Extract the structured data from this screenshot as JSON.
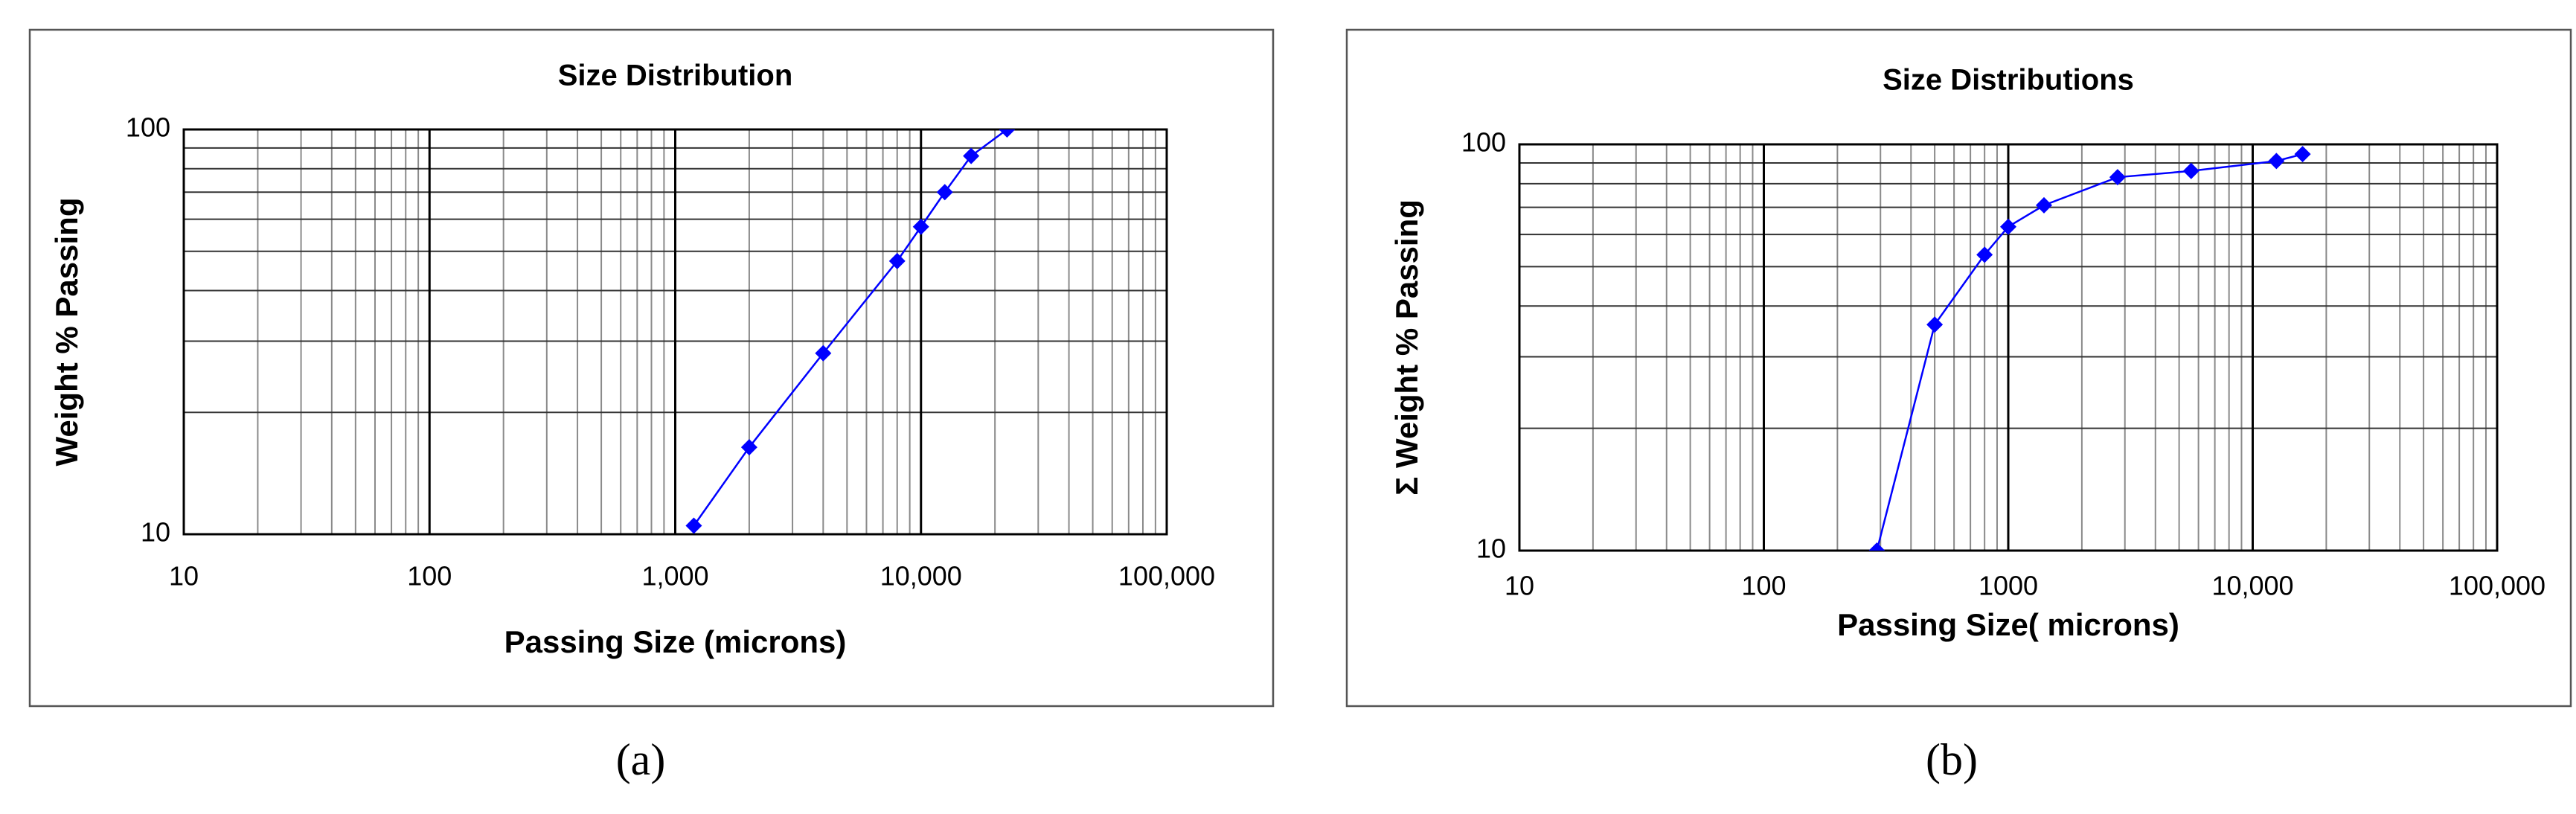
{
  "chart_data": [
    {
      "type": "line",
      "title": "Size Distribution",
      "x_label": "Passing Size (microns)",
      "y_label": "Weight % Passing",
      "caption": "(a)",
      "xscale": "log",
      "yscale": "log",
      "grid": true,
      "minor_grid": true,
      "color": "#0000ff",
      "x": [
        1190,
        2000,
        4000,
        8000,
        10000,
        12500,
        16000,
        22400
      ],
      "values": [
        10.5,
        16.4,
        28,
        47.3,
        57.5,
        70,
        86,
        100
      ],
      "xlim": [
        10,
        100000
      ],
      "xticks": [
        10,
        100,
        {
          "value": 1000,
          "label": "1,000"
        },
        {
          "value": 10000,
          "label": "10,000"
        },
        {
          "value": 100000,
          "label": "100,000"
        }
      ],
      "ylim": [
        10,
        100
      ],
      "yticks": [
        10,
        100
      ]
    },
    {
      "type": "line",
      "title": "Size Distributions",
      "x_label": "Passing Size( microns)",
      "y_label": "Σ Weight % Passing",
      "caption": "(b)",
      "xscale": "log",
      "yscale": "log",
      "grid": true,
      "minor_grid": true,
      "color": "#0000ff",
      "x": [
        290,
        500,
        800,
        1000,
        1400,
        2800,
        5600,
        12500,
        16000
      ],
      "values": [
        10,
        36,
        53.5,
        62.7,
        70.8,
        83,
        86,
        91,
        94.6
      ],
      "xlim": [
        10,
        100000
      ],
      "xticks": [
        10,
        100,
        1000,
        {
          "value": 10000,
          "label": "10,000"
        },
        {
          "value": 100000,
          "label": "100,000"
        }
      ],
      "ylim": [
        10,
        100
      ],
      "yticks": [
        10,
        100
      ]
    }
  ]
}
